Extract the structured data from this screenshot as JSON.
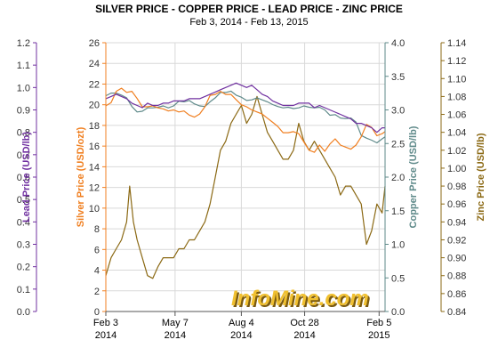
{
  "chart_data": {
    "type": "line",
    "title": "SILVER PRICE - COPPER PRICE - LEAD PRICE - ZINC PRICE",
    "subtitle": "Feb 3, 2014 - Feb 13, 2015",
    "watermark": "InfoMine.com",
    "grid": true,
    "x_axis": {
      "range": [
        "2014-02-03",
        "2015-02-13"
      ],
      "ticks": [
        {
          "date": "2014-02-03",
          "label": "Feb 3",
          "year": "2014"
        },
        {
          "date": "2014-05-07",
          "label": "May 7",
          "year": "2014"
        },
        {
          "date": "2014-08-04",
          "label": "Aug 4",
          "year": "2014"
        },
        {
          "date": "2014-10-28",
          "label": "Oct 28",
          "year": "2014"
        },
        {
          "date": "2015-02-05",
          "label": "Feb 5",
          "year": "2015"
        }
      ]
    },
    "axes": {
      "lead": {
        "label": "Lead Price (USD/lb)",
        "color": "#7030a0",
        "min": 0,
        "max": 1.2,
        "step": 0.1,
        "decimals": 1,
        "side": "left"
      },
      "silver": {
        "label": "Silver Price (USD/ozt)",
        "color": "#f07f20",
        "min": 0,
        "max": 26,
        "step": 2,
        "decimals": 0,
        "side": "left"
      },
      "copper": {
        "label": "Copper Price (USD/lb)",
        "color": "#5f8a8a",
        "min": 0,
        "max": 4,
        "step": 0.5,
        "decimals": 1,
        "side": "right"
      },
      "zinc": {
        "label": "Zinc Price (USD/lb)",
        "color": "#8b6914",
        "min": 0.84,
        "max": 1.14,
        "step": 0.02,
        "decimals": 2,
        "side": "right"
      }
    },
    "series": [
      {
        "name": "Silver",
        "axis": "silver",
        "color": "#f07f20",
        "points": [
          [
            "2014-02-03",
            19.9
          ],
          [
            "2014-02-10",
            20.2
          ],
          [
            "2014-02-17",
            21.3
          ],
          [
            "2014-02-24",
            21.6
          ],
          [
            "2014-03-03",
            21.2
          ],
          [
            "2014-03-10",
            21.3
          ],
          [
            "2014-03-17",
            20.6
          ],
          [
            "2014-03-24",
            19.8
          ],
          [
            "2014-03-31",
            19.8
          ],
          [
            "2014-04-07",
            19.9
          ],
          [
            "2014-04-14",
            19.7
          ],
          [
            "2014-04-21",
            19.6
          ],
          [
            "2014-04-28",
            19.4
          ],
          [
            "2014-05-05",
            19.5
          ],
          [
            "2014-05-12",
            19.3
          ],
          [
            "2014-05-19",
            19.4
          ],
          [
            "2014-05-26",
            19.0
          ],
          [
            "2014-06-02",
            18.8
          ],
          [
            "2014-06-09",
            19.1
          ],
          [
            "2014-06-16",
            19.8
          ],
          [
            "2014-06-23",
            20.9
          ],
          [
            "2014-06-30",
            21.0
          ],
          [
            "2014-07-07",
            21.3
          ],
          [
            "2014-07-14",
            21.0
          ],
          [
            "2014-07-21",
            21.0
          ],
          [
            "2014-07-28",
            20.5
          ],
          [
            "2014-08-04",
            20.0
          ],
          [
            "2014-08-11",
            19.8
          ],
          [
            "2014-08-18",
            19.5
          ],
          [
            "2014-08-25",
            19.3
          ],
          [
            "2014-09-01",
            19.1
          ],
          [
            "2014-09-08",
            18.7
          ],
          [
            "2014-09-15",
            18.3
          ],
          [
            "2014-09-22",
            17.9
          ],
          [
            "2014-09-29",
            17.3
          ],
          [
            "2014-10-06",
            17.3
          ],
          [
            "2014-10-13",
            17.4
          ],
          [
            "2014-10-20",
            17.2
          ],
          [
            "2014-10-27",
            16.4
          ],
          [
            "2014-11-03",
            15.6
          ],
          [
            "2014-11-10",
            15.4
          ],
          [
            "2014-11-17",
            16.1
          ],
          [
            "2014-11-24",
            15.5
          ],
          [
            "2014-12-01",
            16.2
          ],
          [
            "2014-12-08",
            16.7
          ],
          [
            "2014-12-15",
            16.1
          ],
          [
            "2014-12-22",
            15.9
          ],
          [
            "2014-12-29",
            15.7
          ],
          [
            "2015-01-05",
            16.1
          ],
          [
            "2015-01-12",
            16.9
          ],
          [
            "2015-01-19",
            18.1
          ],
          [
            "2015-01-26",
            17.8
          ],
          [
            "2015-02-02",
            17.0
          ],
          [
            "2015-02-09",
            17.2
          ],
          [
            "2015-02-13",
            17.4
          ]
        ]
      },
      {
        "name": "Copper",
        "axis": "copper",
        "color": "#5f8a8a",
        "points": [
          [
            "2014-02-03",
            3.21
          ],
          [
            "2014-02-10",
            3.25
          ],
          [
            "2014-02-17",
            3.25
          ],
          [
            "2014-02-24",
            3.22
          ],
          [
            "2014-03-03",
            3.18
          ],
          [
            "2014-03-10",
            3.05
          ],
          [
            "2014-03-17",
            2.97
          ],
          [
            "2014-03-24",
            2.98
          ],
          [
            "2014-03-31",
            3.03
          ],
          [
            "2014-04-07",
            3.03
          ],
          [
            "2014-04-14",
            3.04
          ],
          [
            "2014-04-21",
            3.06
          ],
          [
            "2014-04-28",
            3.03
          ],
          [
            "2014-05-05",
            3.06
          ],
          [
            "2014-05-12",
            3.13
          ],
          [
            "2014-05-19",
            3.12
          ],
          [
            "2014-05-26",
            3.14
          ],
          [
            "2014-06-02",
            3.09
          ],
          [
            "2014-06-09",
            3.06
          ],
          [
            "2014-06-16",
            3.05
          ],
          [
            "2014-06-23",
            3.12
          ],
          [
            "2014-06-30",
            3.18
          ],
          [
            "2014-07-07",
            3.26
          ],
          [
            "2014-07-14",
            3.26
          ],
          [
            "2014-07-21",
            3.28
          ],
          [
            "2014-07-28",
            3.22
          ],
          [
            "2014-08-04",
            3.19
          ],
          [
            "2014-08-11",
            3.14
          ],
          [
            "2014-08-18",
            3.15
          ],
          [
            "2014-08-25",
            3.18
          ],
          [
            "2014-09-01",
            3.15
          ],
          [
            "2014-09-08",
            3.12
          ],
          [
            "2014-09-15",
            3.08
          ],
          [
            "2014-09-22",
            3.05
          ],
          [
            "2014-09-29",
            3.03
          ],
          [
            "2014-10-06",
            3.04
          ],
          [
            "2014-10-13",
            3.02
          ],
          [
            "2014-10-20",
            3.03
          ],
          [
            "2014-10-27",
            3.06
          ],
          [
            "2014-11-03",
            3.04
          ],
          [
            "2014-11-10",
            3.03
          ],
          [
            "2014-11-17",
            3.04
          ],
          [
            "2014-11-24",
            3.0
          ],
          [
            "2014-12-01",
            2.92
          ],
          [
            "2014-12-08",
            2.93
          ],
          [
            "2014-12-15",
            2.88
          ],
          [
            "2014-12-22",
            2.87
          ],
          [
            "2014-12-29",
            2.88
          ],
          [
            "2015-01-05",
            2.82
          ],
          [
            "2015-01-12",
            2.62
          ],
          [
            "2015-01-19",
            2.58
          ],
          [
            "2015-01-26",
            2.55
          ],
          [
            "2015-02-02",
            2.51
          ],
          [
            "2015-02-09",
            2.57
          ],
          [
            "2015-02-13",
            2.6
          ]
        ]
      },
      {
        "name": "Lead",
        "axis": "lead",
        "color": "#7030a0",
        "points": [
          [
            "2014-02-03",
            0.95
          ],
          [
            "2014-02-10",
            0.96
          ],
          [
            "2014-02-17",
            0.97
          ],
          [
            "2014-02-24",
            0.96
          ],
          [
            "2014-03-03",
            0.95
          ],
          [
            "2014-03-10",
            0.93
          ],
          [
            "2014-03-17",
            0.92
          ],
          [
            "2014-03-24",
            0.91
          ],
          [
            "2014-03-31",
            0.93
          ],
          [
            "2014-04-07",
            0.92
          ],
          [
            "2014-04-14",
            0.92
          ],
          [
            "2014-04-21",
            0.93
          ],
          [
            "2014-04-28",
            0.93
          ],
          [
            "2014-05-05",
            0.94
          ],
          [
            "2014-05-12",
            0.94
          ],
          [
            "2014-05-19",
            0.94
          ],
          [
            "2014-05-26",
            0.95
          ],
          [
            "2014-06-02",
            0.95
          ],
          [
            "2014-06-09",
            0.95
          ],
          [
            "2014-06-16",
            0.96
          ],
          [
            "2014-06-23",
            0.97
          ],
          [
            "2014-06-30",
            0.98
          ],
          [
            "2014-07-07",
            0.99
          ],
          [
            "2014-07-14",
            1.0
          ],
          [
            "2014-07-21",
            1.01
          ],
          [
            "2014-07-28",
            1.02
          ],
          [
            "2014-08-04",
            1.01
          ],
          [
            "2014-08-11",
            1.0
          ],
          [
            "2014-08-18",
            1.01
          ],
          [
            "2014-08-25",
            0.99
          ],
          [
            "2014-09-01",
            0.97
          ],
          [
            "2014-09-08",
            0.96
          ],
          [
            "2014-09-15",
            0.94
          ],
          [
            "2014-09-22",
            0.93
          ],
          [
            "2014-09-29",
            0.92
          ],
          [
            "2014-10-06",
            0.92
          ],
          [
            "2014-10-13",
            0.92
          ],
          [
            "2014-10-20",
            0.93
          ],
          [
            "2014-10-27",
            0.93
          ],
          [
            "2014-11-03",
            0.93
          ],
          [
            "2014-11-10",
            0.91
          ],
          [
            "2014-11-17",
            0.92
          ],
          [
            "2014-11-24",
            0.91
          ],
          [
            "2014-12-01",
            0.9
          ],
          [
            "2014-12-08",
            0.89
          ],
          [
            "2014-12-15",
            0.88
          ],
          [
            "2014-12-22",
            0.87
          ],
          [
            "2014-12-29",
            0.86
          ],
          [
            "2015-01-05",
            0.84
          ],
          [
            "2015-01-12",
            0.84
          ],
          [
            "2015-01-19",
            0.83
          ],
          [
            "2015-01-26",
            0.82
          ],
          [
            "2015-02-02",
            0.8
          ],
          [
            "2015-02-09",
            0.82
          ],
          [
            "2015-02-13",
            0.82
          ]
        ]
      },
      {
        "name": "Zinc",
        "axis": "zinc",
        "color": "#8b6914",
        "points": [
          [
            "2014-02-03",
            0.88
          ],
          [
            "2014-02-10",
            0.9
          ],
          [
            "2014-02-17",
            0.91
          ],
          [
            "2014-02-24",
            0.92
          ],
          [
            "2014-03-03",
            0.94
          ],
          [
            "2014-03-07",
            0.98
          ],
          [
            "2014-03-12",
            0.94
          ],
          [
            "2014-03-17",
            0.92
          ],
          [
            "2014-03-24",
            0.9
          ],
          [
            "2014-03-31",
            0.88
          ],
          [
            "2014-04-07",
            0.877
          ],
          [
            "2014-04-14",
            0.89
          ],
          [
            "2014-04-21",
            0.9
          ],
          [
            "2014-04-28",
            0.9
          ],
          [
            "2014-05-05",
            0.9
          ],
          [
            "2014-05-12",
            0.91
          ],
          [
            "2014-05-19",
            0.91
          ],
          [
            "2014-05-26",
            0.92
          ],
          [
            "2014-06-02",
            0.92
          ],
          [
            "2014-06-09",
            0.93
          ],
          [
            "2014-06-16",
            0.94
          ],
          [
            "2014-06-23",
            0.96
          ],
          [
            "2014-06-30",
            0.99
          ],
          [
            "2014-07-07",
            1.02
          ],
          [
            "2014-07-14",
            1.03
          ],
          [
            "2014-07-21",
            1.05
          ],
          [
            "2014-07-28",
            1.06
          ],
          [
            "2014-08-04",
            1.07
          ],
          [
            "2014-08-11",
            1.05
          ],
          [
            "2014-08-18",
            1.06
          ],
          [
            "2014-08-25",
            1.08
          ],
          [
            "2014-09-01",
            1.06
          ],
          [
            "2014-09-08",
            1.04
          ],
          [
            "2014-09-15",
            1.03
          ],
          [
            "2014-09-22",
            1.02
          ],
          [
            "2014-09-29",
            1.01
          ],
          [
            "2014-10-06",
            1.01
          ],
          [
            "2014-10-13",
            1.02
          ],
          [
            "2014-10-20",
            1.05
          ],
          [
            "2014-10-27",
            1.03
          ],
          [
            "2014-11-03",
            1.02
          ],
          [
            "2014-11-10",
            1.03
          ],
          [
            "2014-11-17",
            1.02
          ],
          [
            "2014-11-24",
            1.01
          ],
          [
            "2014-12-01",
            1.0
          ],
          [
            "2014-12-08",
            0.99
          ],
          [
            "2014-12-15",
            0.97
          ],
          [
            "2014-12-22",
            0.98
          ],
          [
            "2014-12-29",
            0.98
          ],
          [
            "2015-01-05",
            0.97
          ],
          [
            "2015-01-12",
            0.96
          ],
          [
            "2015-01-19",
            0.915
          ],
          [
            "2015-01-26",
            0.93
          ],
          [
            "2015-02-02",
            0.96
          ],
          [
            "2015-02-09",
            0.95
          ],
          [
            "2015-02-13",
            0.98
          ]
        ]
      }
    ]
  }
}
